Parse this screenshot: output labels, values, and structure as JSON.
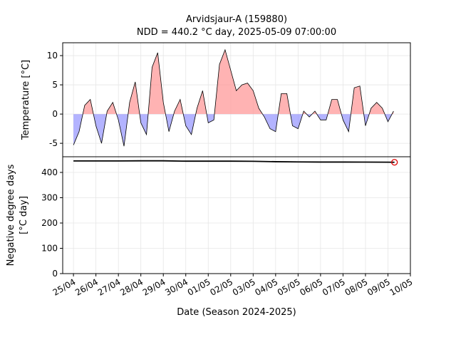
{
  "chart_data": [
    {
      "type": "area",
      "title": "Arvidsjaur-A (159880)",
      "subtitle": "NDD = 440.2 °C day, 2025-05-09 07:00:00",
      "ylabel": "Temperature [°C]",
      "grid": true,
      "xlim": [
        "2025-04-24T12:30",
        "2025-05-10T00:00"
      ],
      "ylim": [
        -7.3,
        12.2
      ],
      "yticks": [
        -5,
        0,
        5,
        10
      ],
      "positive_color": "#ff9999",
      "negative_color": "#9999ff",
      "line_color": "#000000",
      "x": [
        "2025-04-25T00:00",
        "2025-04-25T06:00",
        "2025-04-25T12:00",
        "2025-04-25T18:00",
        "2025-04-26T00:00",
        "2025-04-26T06:00",
        "2025-04-26T12:00",
        "2025-04-26T18:00",
        "2025-04-27T00:00",
        "2025-04-27T06:00",
        "2025-04-27T12:00",
        "2025-04-27T18:00",
        "2025-04-28T00:00",
        "2025-04-28T06:00",
        "2025-04-28T12:00",
        "2025-04-28T18:00",
        "2025-04-29T00:00",
        "2025-04-29T06:00",
        "2025-04-29T12:00",
        "2025-04-29T18:00",
        "2025-04-30T00:00",
        "2025-04-30T06:00",
        "2025-04-30T12:00",
        "2025-04-30T18:00",
        "2025-05-01T00:00",
        "2025-05-01T06:00",
        "2025-05-01T12:00",
        "2025-05-01T18:00",
        "2025-05-02T00:00",
        "2025-05-02T06:00",
        "2025-05-02T12:00",
        "2025-05-02T18:00",
        "2025-05-03T00:00",
        "2025-05-03T06:00",
        "2025-05-03T12:00",
        "2025-05-03T18:00",
        "2025-05-04T00:00",
        "2025-05-04T06:00",
        "2025-05-04T12:00",
        "2025-05-04T18:00",
        "2025-05-05T00:00",
        "2025-05-05T06:00",
        "2025-05-05T12:00",
        "2025-05-05T18:00",
        "2025-05-06T00:00",
        "2025-05-06T06:00",
        "2025-05-06T12:00",
        "2025-05-06T18:00",
        "2025-05-07T00:00",
        "2025-05-07T06:00",
        "2025-05-07T12:00",
        "2025-05-07T18:00",
        "2025-05-08T00:00",
        "2025-05-08T06:00",
        "2025-05-08T12:00",
        "2025-05-08T18:00",
        "2025-05-09T00:00",
        "2025-05-09T06:00"
      ],
      "values": [
        -5.3,
        -3,
        1.5,
        2.5,
        -2,
        -5,
        0.5,
        2,
        -1,
        -5.5,
        2,
        5.5,
        -1.5,
        -3.5,
        8,
        10.5,
        2,
        -3,
        0.5,
        2.5,
        -2,
        -3.5,
        1,
        4,
        -1.5,
        -1,
        8.5,
        11,
        7.5,
        4,
        5,
        5.3,
        4,
        1,
        -0.5,
        -2.5,
        -3,
        3.5,
        3.5,
        -2,
        -2.5,
        0.5,
        -0.5,
        0.5,
        -1,
        -1,
        2.5,
        2.5,
        -1,
        -3,
        4.5,
        4.8,
        -2,
        1,
        2,
        1,
        -1.3,
        0.5
      ]
    },
    {
      "type": "line",
      "ylabel": "Negative degree days",
      "ylabel2": "[°C day]",
      "xlabel": "Date (Season 2024-2025)",
      "grid": true,
      "xlim": [
        "2025-04-24T12:30",
        "2025-05-10T00:00"
      ],
      "xticks": [
        {
          "value": "2025-04-25T00:00",
          "label": "25/04"
        },
        {
          "value": "2025-04-26T00:00",
          "label": "26/04"
        },
        {
          "value": "2025-04-27T00:00",
          "label": "27/04"
        },
        {
          "value": "2025-04-28T00:00",
          "label": "28/04"
        },
        {
          "value": "2025-04-29T00:00",
          "label": "29/04"
        },
        {
          "value": "2025-04-30T00:00",
          "label": "30/04"
        },
        {
          "value": "2025-05-01T00:00",
          "label": "01/05"
        },
        {
          "value": "2025-05-02T00:00",
          "label": "02/05"
        },
        {
          "value": "2025-05-03T00:00",
          "label": "03/05"
        },
        {
          "value": "2025-05-04T00:00",
          "label": "04/05"
        },
        {
          "value": "2025-05-05T00:00",
          "label": "05/05"
        },
        {
          "value": "2025-05-06T00:00",
          "label": "06/05"
        },
        {
          "value": "2025-05-07T00:00",
          "label": "07/05"
        },
        {
          "value": "2025-05-08T00:00",
          "label": "08/05"
        },
        {
          "value": "2025-05-09T00:00",
          "label": "09/05"
        },
        {
          "value": "2025-05-10T00:00",
          "label": "10/05"
        }
      ],
      "ylim": [
        0,
        462
      ],
      "yticks": [
        0,
        100,
        200,
        300,
        400
      ],
      "line_color": "#000000",
      "marker_color": "#dd0000",
      "x": [
        "2025-04-25T00:00",
        "2025-04-26T00:00",
        "2025-04-27T00:00",
        "2025-04-28T00:00",
        "2025-04-29T00:00",
        "2025-04-30T00:00",
        "2025-05-01T00:00",
        "2025-05-02T00:00",
        "2025-05-03T00:00",
        "2025-05-04T00:00",
        "2025-05-05T00:00",
        "2025-05-06T00:00",
        "2025-05-07T00:00",
        "2025-05-08T00:00",
        "2025-05-09T00:00",
        "2025-05-09T07:00"
      ],
      "values": [
        445.5,
        445.5,
        445.5,
        446,
        446,
        444.5,
        444.5,
        444.5,
        444,
        442.5,
        441.5,
        441,
        441,
        440.8,
        440.5,
        440.2
      ]
    }
  ]
}
